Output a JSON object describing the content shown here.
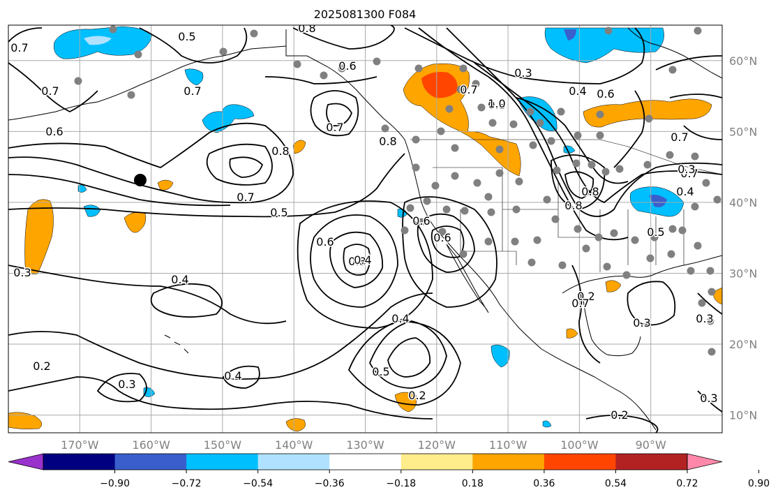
{
  "title": "2025081300 F084",
  "map": {
    "lon_range": [
      -180,
      -80
    ],
    "lat_range": [
      7.5,
      65
    ],
    "meridians": [
      -170,
      -160,
      -150,
      -140,
      -130,
      -120,
      -110,
      -100,
      -90,
      -80
    ],
    "parallels": [
      10,
      20,
      30,
      40,
      50,
      60
    ],
    "lon_labels": [
      "170°W",
      "160°W",
      "150°W",
      "140°W",
      "130°W",
      "120°W",
      "110°W",
      "100°W",
      "90°W"
    ],
    "lat_labels": [
      "10°N",
      "20°N",
      "30°N",
      "40°N",
      "50°N",
      "60°N"
    ],
    "grid_color": "#aaaaaa",
    "contour_labels": [
      "0.7",
      "0.5",
      "0.8",
      "0.7",
      "0.7",
      "0.6",
      "0.8",
      "0.6",
      "0.3",
      "0.4",
      "0.8",
      "0.7",
      "0.6",
      "0.8",
      "0.7",
      "0.5",
      "0.7",
      "0.8",
      "0.6",
      "0.6",
      "0.8",
      "0.7",
      "1.0",
      "0.8",
      "0.6",
      "0.4",
      "0.7",
      "0.3",
      "0.2",
      "0.3",
      "0.4",
      "0.4",
      "0.5",
      "0.2",
      "0.3",
      "0.2",
      "0.3",
      "0.3",
      "0.2",
      "0.3",
      "0.4",
      "0.7",
      "0.5",
      "0.4"
    ]
  },
  "colorbar": {
    "ticks": [
      "−0.90",
      "−0.72",
      "−0.54",
      "−0.36",
      "−0.18",
      "0.18",
      "0.36",
      "0.54",
      "0.72",
      "0.90"
    ],
    "colors": [
      "#9932cc",
      "#000080",
      "#3a5fcd",
      "#00bfff",
      "#b0e2ff",
      "#ffffff",
      "#ffec8b",
      "#ffa500",
      "#ff4500",
      "#b22222",
      "#ff88aa"
    ]
  }
}
